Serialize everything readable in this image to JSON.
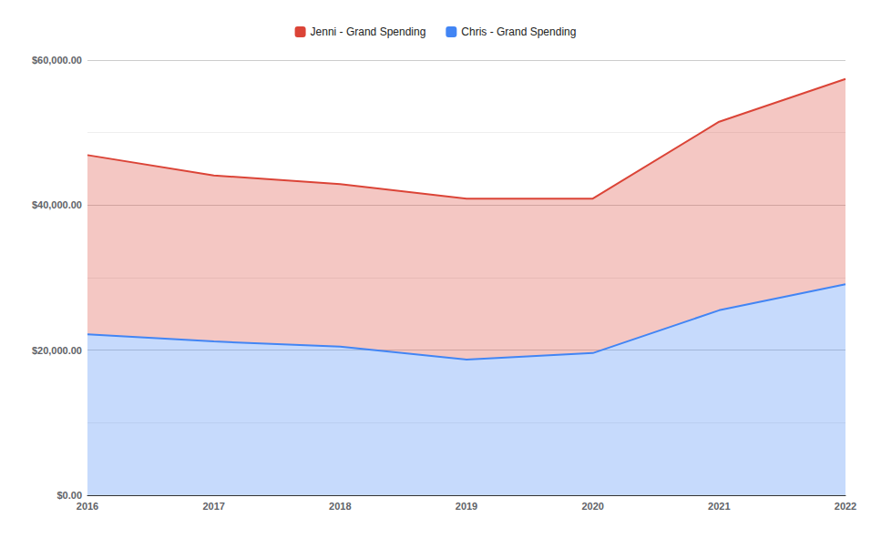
{
  "chart_data": {
    "type": "area",
    "categories": [
      "2016",
      "2017",
      "2018",
      "2019",
      "2020",
      "2021",
      "2022"
    ],
    "series": [
      {
        "name": "Jenni - Grand Spending",
        "color": "#db4437",
        "values": [
          24700,
          22900,
          22400,
          22200,
          21300,
          26000,
          28300
        ]
      },
      {
        "name": "Chris - Grand Spending",
        "color": "#4285f4",
        "values": [
          22200,
          21200,
          20500,
          18700,
          19600,
          25500,
          29100
        ]
      }
    ],
    "stacked": true,
    "ylim": [
      0,
      60000
    ],
    "yticks": [
      {
        "value": 0,
        "label": "$0.00"
      },
      {
        "value": 20000,
        "label": "$20,000.00"
      },
      {
        "value": 40000,
        "label": "$40,000.00"
      },
      {
        "value": 60000,
        "label": "$60,000.00"
      }
    ],
    "grid": true,
    "legend": "top"
  }
}
